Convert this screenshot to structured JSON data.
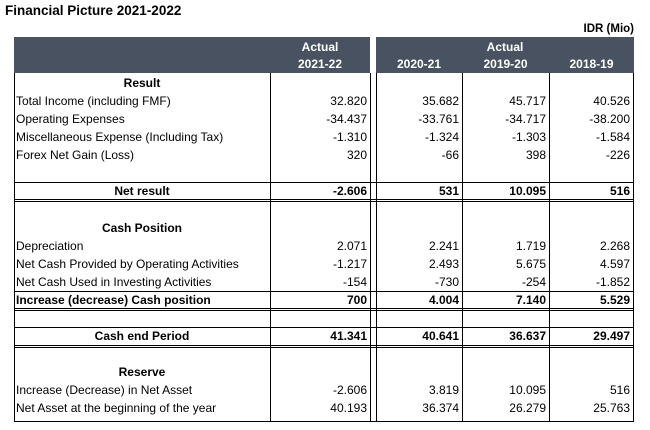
{
  "title": "Financial Picture 2021-2022",
  "unit": "IDR (Mio)",
  "header": {
    "actual_left": "Actual",
    "year_left": "2021-22",
    "actual_right": "Actual",
    "years": [
      "2020-21",
      "2019-20",
      "2018-19"
    ]
  },
  "sections": {
    "result": "Result",
    "cash_position": "Cash Position",
    "reserve": "Reserve"
  },
  "rows": {
    "total_income": {
      "label": "Total Income (including FMF)",
      "values": [
        "32.820",
        "35.682",
        "45.717",
        "40.526"
      ]
    },
    "operating_expenses": {
      "label": "Operating Expenses",
      "values": [
        "-34.437",
        "-33.761",
        "-34.717",
        "-38.200"
      ]
    },
    "misc_expense": {
      "label": "Miscellaneous Expense (Including Tax)",
      "values": [
        "-1.310",
        "-1.324",
        "-1.303",
        "-1.584"
      ]
    },
    "forex": {
      "label": "Forex Net Gain (Loss)",
      "values": [
        "320",
        "-66",
        "398",
        "-226"
      ]
    },
    "net_result": {
      "label": "Net result",
      "values": [
        "-2.606",
        "531",
        "10.095",
        "516"
      ]
    },
    "depreciation": {
      "label": "Depreciation",
      "values": [
        "2.071",
        "2.241",
        "1.719",
        "2.268"
      ]
    },
    "op_activities": {
      "label": "Net Cash Provided by Operating Activities",
      "values": [
        "-1.217",
        "2.493",
        "5.675",
        "4.597"
      ]
    },
    "inv_activities": {
      "label": "Net Cash Used in Investing Activities",
      "values": [
        "-154",
        "-730",
        "-254",
        "-1.852"
      ]
    },
    "cash_change": {
      "label": "Increase (decrease) Cash position",
      "values": [
        "700",
        "4.004",
        "7.140",
        "5.529"
      ]
    },
    "cash_end": {
      "label": "Cash end Period",
      "values": [
        "41.341",
        "40.641",
        "36.637",
        "29.497"
      ]
    },
    "net_asset_change": {
      "label": "Increase (Decrease) in Net Asset",
      "values": [
        "-2.606",
        "3.819",
        "10.095",
        "516"
      ]
    },
    "net_asset_begin": {
      "label": "Net Asset at the beginning of the year",
      "values": [
        "40.193",
        "36.374",
        "26.279",
        "25.763"
      ]
    }
  },
  "colors": {
    "header_bg": "#485260",
    "header_text": "#ffffff"
  }
}
